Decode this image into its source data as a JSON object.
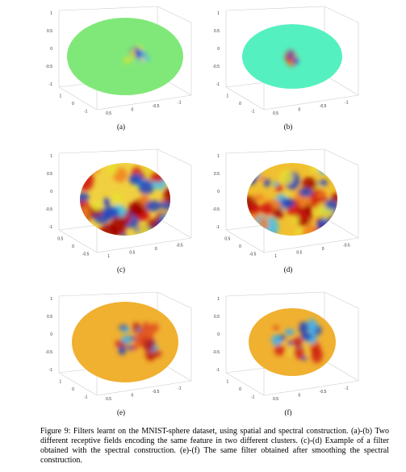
{
  "figure": {
    "panels": [
      {
        "label": "(a)",
        "zticks": [
          "1",
          "0.5",
          "0",
          "-0.5",
          "-1"
        ],
        "left_ticks": [
          "1",
          "0",
          "-1"
        ],
        "right_ticks": [
          "0.5",
          "0",
          "-0.5",
          "-1"
        ]
      },
      {
        "label": "(b)",
        "zticks": [
          "1",
          "0.5",
          "0",
          "-0.5",
          "-1"
        ],
        "left_ticks": [
          "1",
          "0",
          "-1"
        ],
        "right_ticks": [
          "0.5",
          "0",
          "-0.5",
          "-1"
        ]
      },
      {
        "label": "(c)",
        "zticks": [
          "1",
          "0.5",
          "0",
          "-0.5",
          "-1"
        ],
        "left_ticks": [
          "0.5",
          "0",
          "-0.5"
        ],
        "right_ticks": [
          "1",
          "0.5",
          "0",
          "-0.5"
        ]
      },
      {
        "label": "(d)",
        "zticks": [
          "1",
          "0.5",
          "0",
          "-0.5",
          "-1"
        ],
        "left_ticks": [
          "0.5",
          "0",
          "-0.5"
        ],
        "right_ticks": [
          "1",
          "0.5",
          "0",
          "-0.5"
        ]
      },
      {
        "label": "(e)",
        "zticks": [
          "1",
          "0.5",
          "0",
          "-0.5",
          "-1"
        ],
        "left_ticks": [
          "1",
          "0",
          "-1"
        ],
        "right_ticks": [
          "0.5",
          "0",
          "-0.5",
          "-1"
        ]
      },
      {
        "label": "(f)",
        "zticks": [
          "1",
          "0.5",
          "0",
          "-0.5",
          "-1"
        ],
        "left_ticks": [
          "1",
          "0",
          "-1"
        ],
        "right_ticks": [
          "0.5",
          "0",
          "-0.5",
          "-1"
        ]
      }
    ],
    "caption": "Figure 9: Filters learnt on the MNIST-sphere dataset, using spatial and spectral construction. (a)-(b) Two different receptive fields encoding the same feature in two different clusters. (c)-(d) Example of a filter obtained with the spectral construction. (e)-(f) The same filter obtained after smoothing the spectral construction."
  }
}
